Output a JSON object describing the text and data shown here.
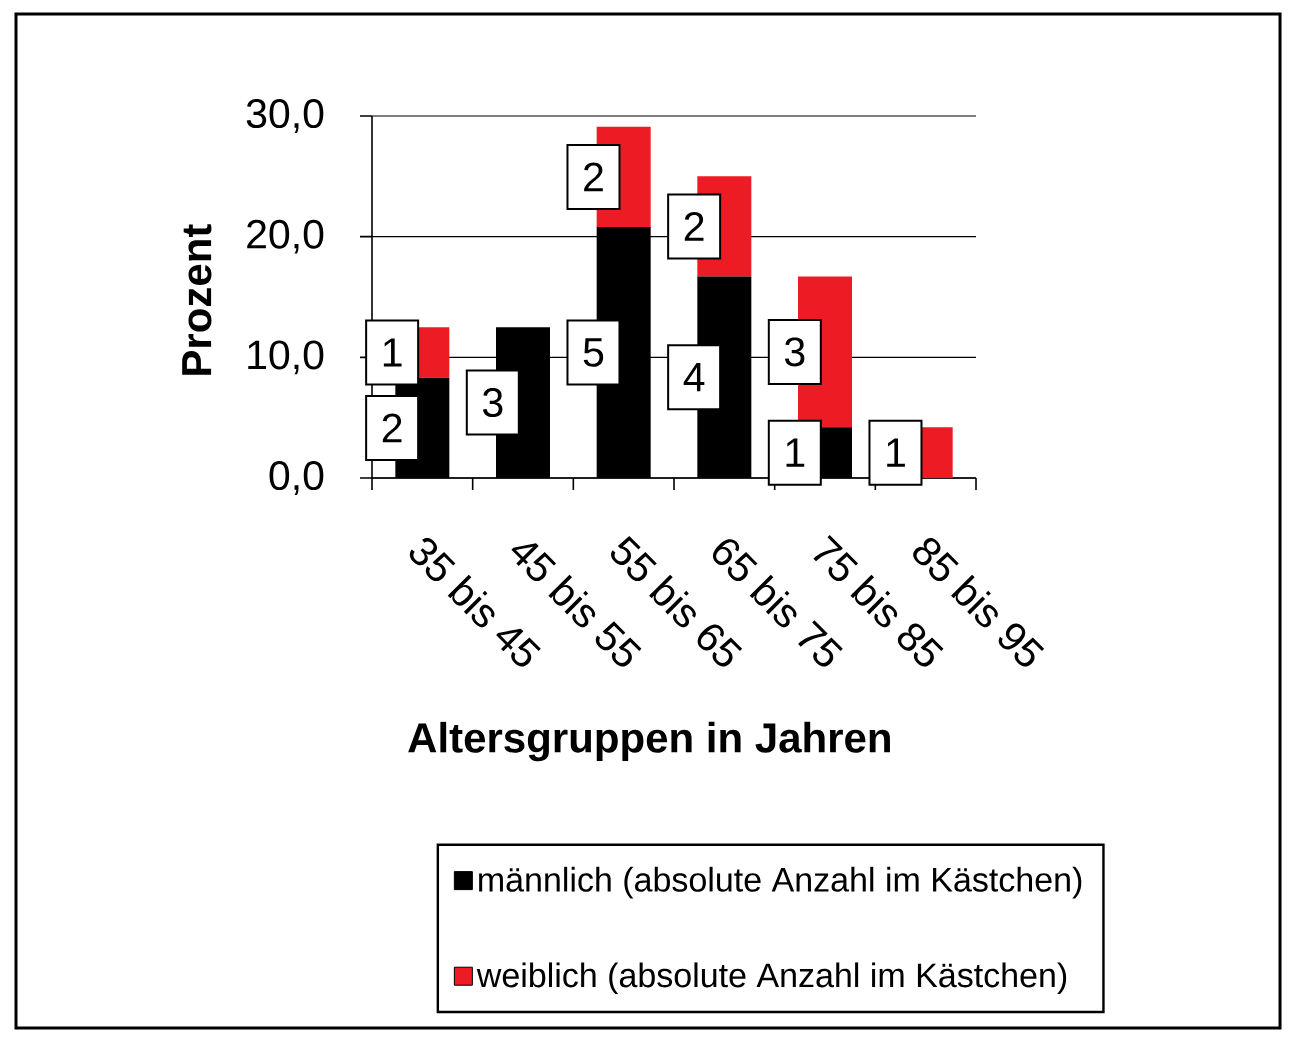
{
  "chart_data": {
    "type": "bar",
    "stacked": true,
    "xlabel": "Altersgruppen in Jahren",
    "ylabel": "Prozent",
    "categories": [
      "35 bis 45",
      "45 bis 55",
      "55 bis 65",
      "65 bis 75",
      "75 bis 85",
      "85 bis 95"
    ],
    "series": [
      {
        "name": "männlich (absolute Anzahl im Kästchen)",
        "color": "#000000",
        "values": [
          8.3,
          12.5,
          20.8,
          16.7,
          4.2,
          0
        ]
      },
      {
        "name": "weiblich (absolute Anzahl im Kästchen)",
        "color": "#ed1c24",
        "values": [
          4.2,
          0,
          8.3,
          8.3,
          12.5,
          4.2
        ]
      }
    ],
    "annotations": [
      "2",
      "1",
      "3",
      "5",
      "2",
      "4",
      "2",
      "1",
      "3",
      "1"
    ],
    "ylim": [
      0,
      30
    ],
    "yticks": [
      {
        "value": 0,
        "label": "0,0"
      },
      {
        "value": 10,
        "label": "10,0"
      },
      {
        "value": 20,
        "label": "20,0"
      },
      {
        "value": 30,
        "label": "30,0"
      }
    ],
    "grid": "y",
    "legend": "bottom"
  }
}
